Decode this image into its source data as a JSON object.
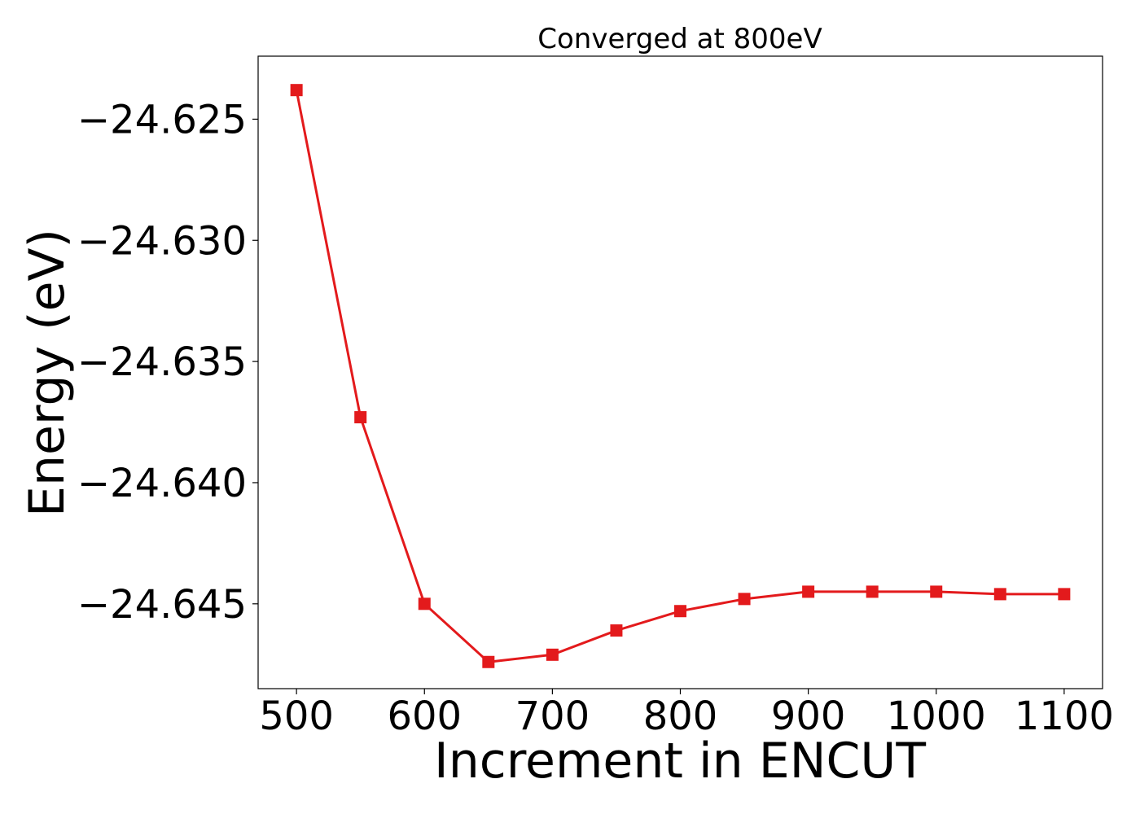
{
  "chart_data": {
    "type": "line",
    "title": "Converged at 800eV",
    "xlabel": "Increment in ENCUT",
    "ylabel": "Energy (eV)",
    "x": [
      500,
      550,
      600,
      650,
      700,
      750,
      800,
      850,
      900,
      950,
      1000,
      1050,
      1100
    ],
    "xlim": [
      470,
      1130
    ],
    "ylim": [
      -24.6485,
      -24.6224
    ],
    "x_ticks": [
      500,
      600,
      700,
      800,
      900,
      1000,
      1100
    ],
    "x_tick_labels": [
      "500",
      "600",
      "700",
      "800",
      "900",
      "1000",
      "1100"
    ],
    "y_ticks": [
      -24.625,
      -24.63,
      -24.635,
      -24.64,
      -24.645
    ],
    "y_tick_labels": [
      "−24.625",
      "−24.630",
      "−24.635",
      "−24.640",
      "−24.645"
    ],
    "grid": false,
    "series": [
      {
        "color": "#e31a1c",
        "marker": "square",
        "values": [
          -24.6238,
          -24.6373,
          -24.645,
          -24.6474,
          -24.6471,
          -24.6461,
          -24.6453,
          -24.6448,
          -24.6445,
          -24.6445,
          -24.6445,
          -24.6446,
          -24.6446
        ]
      }
    ]
  }
}
